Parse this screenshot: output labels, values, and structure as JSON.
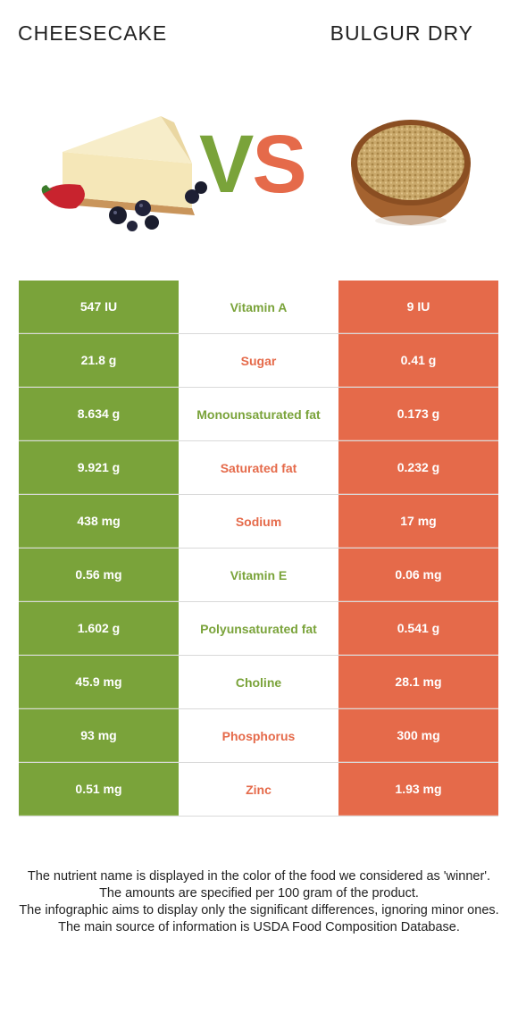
{
  "header": {
    "left_title": "CHEESECAKE",
    "right_title": "BULGUR DRY",
    "vs_v": "V",
    "vs_s": "S"
  },
  "colors": {
    "left_accent": "#7aa33a",
    "right_accent": "#e56a4a"
  },
  "rows": [
    {
      "left": "547 IU",
      "name": "Vitamin A",
      "right": "9 IU",
      "winner": "left"
    },
    {
      "left": "21.8 g",
      "name": "Sugar",
      "right": "0.41 g",
      "winner": "right"
    },
    {
      "left": "8.634 g",
      "name": "Monounsaturated fat",
      "right": "0.173 g",
      "winner": "left"
    },
    {
      "left": "9.921 g",
      "name": "Saturated fat",
      "right": "0.232 g",
      "winner": "right"
    },
    {
      "left": "438 mg",
      "name": "Sodium",
      "right": "17 mg",
      "winner": "right"
    },
    {
      "left": "0.56 mg",
      "name": "Vitamin E",
      "right": "0.06 mg",
      "winner": "left"
    },
    {
      "left": "1.602 g",
      "name": "Polyunsaturated fat",
      "right": "0.541 g",
      "winner": "left"
    },
    {
      "left": "45.9 mg",
      "name": "Choline",
      "right": "28.1 mg",
      "winner": "left"
    },
    {
      "left": "93 mg",
      "name": "Phosphorus",
      "right": "300 mg",
      "winner": "right"
    },
    {
      "left": "0.51 mg",
      "name": "Zinc",
      "right": "1.93 mg",
      "winner": "right"
    }
  ],
  "footer": {
    "line1": "The nutrient name is displayed in the color of the food we considered as 'winner'.",
    "line2": "The amounts are specified per 100 gram of the product.",
    "line3": "The infographic aims to display only the significant differences, ignoring minor ones.",
    "line4": "The main source of information is USDA Food Composition Database."
  }
}
